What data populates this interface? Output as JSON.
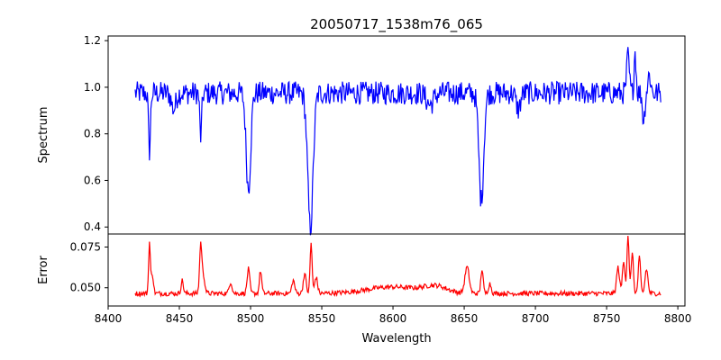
{
  "chart_data": [
    {
      "type": "line",
      "panel": "top",
      "title": "20050717_1538m76_065",
      "ylabel": "Spectrum",
      "xlim": [
        8400,
        8805
      ],
      "ylim": [
        0.37,
        1.22
      ],
      "yticks": [
        0.4,
        0.6,
        0.8,
        1.0,
        1.2
      ],
      "ytick_labels": [
        "0.4",
        "0.6",
        "0.8",
        "1.0",
        "1.2"
      ],
      "series": [
        {
          "color": "#0000ff",
          "continuum": 0.975,
          "noise_amplitude": 0.05,
          "x_start": 8419,
          "x_end": 8788,
          "step": 0.5,
          "absorption_lines": [
            {
              "x": 8429,
              "depth": 0.25,
              "width": 0.7
            },
            {
              "x": 8446,
              "depth": 0.07,
              "width": 1.5
            },
            {
              "x": 8465,
              "depth": 0.19,
              "width": 0.7
            },
            {
              "x": 8498.5,
              "depth": 0.41,
              "width": 1.6
            },
            {
              "x": 8542,
              "depth": 0.58,
              "width": 1.9
            },
            {
              "x": 8626,
              "depth": 0.05,
              "width": 2.5
            },
            {
              "x": 8662,
              "depth": 0.46,
              "width": 1.7
            },
            {
              "x": 8688,
              "depth": 0.07,
              "width": 1.5
            },
            {
              "x": 8776,
              "depth": 0.12,
              "width": 0.8
            }
          ],
          "emission_spikes": [
            {
              "x": 8765,
              "height": 0.16,
              "width": 0.9
            },
            {
              "x": 8770,
              "height": 0.18,
              "width": 0.7
            },
            {
              "x": 8780,
              "height": 0.08,
              "width": 1.0
            }
          ]
        }
      ]
    },
    {
      "type": "line",
      "panel": "bottom",
      "xlabel": "Wavelength",
      "ylabel": "Error",
      "xlim": [
        8400,
        8805
      ],
      "ylim": [
        0.0388,
        0.083
      ],
      "xticks": [
        8400,
        8450,
        8500,
        8550,
        8600,
        8650,
        8700,
        8750,
        8800
      ],
      "xtick_labels": [
        "8400",
        "8450",
        "8500",
        "8550",
        "8600",
        "8650",
        "8700",
        "8750",
        "8800"
      ],
      "yticks": [
        0.05,
        0.075
      ],
      "ytick_labels": [
        "0.050",
        "0.075"
      ],
      "series": [
        {
          "color": "#ff0000",
          "baseline": 0.0465,
          "noise_amplitude": 0.0015,
          "x_start": 8419,
          "x_end": 8788,
          "step": 0.5,
          "peaks": [
            {
              "x": 8429,
              "height": 0.031,
              "width": 0.6
            },
            {
              "x": 8431,
              "height": 0.012,
              "width": 0.8
            },
            {
              "x": 8452,
              "height": 0.008,
              "width": 0.8
            },
            {
              "x": 8465,
              "height": 0.03,
              "width": 0.8
            },
            {
              "x": 8467,
              "height": 0.01,
              "width": 1.0
            },
            {
              "x": 8486,
              "height": 0.007,
              "width": 1.0
            },
            {
              "x": 8498.5,
              "height": 0.015,
              "width": 0.9
            },
            {
              "x": 8507,
              "height": 0.014,
              "width": 0.8
            },
            {
              "x": 8530,
              "height": 0.008,
              "width": 1.0
            },
            {
              "x": 8538,
              "height": 0.012,
              "width": 1.0
            },
            {
              "x": 8542.5,
              "height": 0.031,
              "width": 0.7
            },
            {
              "x": 8546,
              "height": 0.01,
              "width": 1.0
            },
            {
              "x": 8600,
              "height": 0.004,
              "width": 18.0
            },
            {
              "x": 8630,
              "height": 0.004,
              "width": 8.0
            },
            {
              "x": 8652,
              "height": 0.016,
              "width": 1.5
            },
            {
              "x": 8662.5,
              "height": 0.015,
              "width": 0.8
            },
            {
              "x": 8668,
              "height": 0.006,
              "width": 1.0
            },
            {
              "x": 8758,
              "height": 0.016,
              "width": 1.0
            },
            {
              "x": 8762,
              "height": 0.02,
              "width": 0.9
            },
            {
              "x": 8765,
              "height": 0.036,
              "width": 0.7
            },
            {
              "x": 8768,
              "height": 0.025,
              "width": 0.8
            },
            {
              "x": 8773,
              "height": 0.022,
              "width": 0.8
            },
            {
              "x": 8778,
              "height": 0.015,
              "width": 1.0
            }
          ]
        }
      ]
    }
  ]
}
